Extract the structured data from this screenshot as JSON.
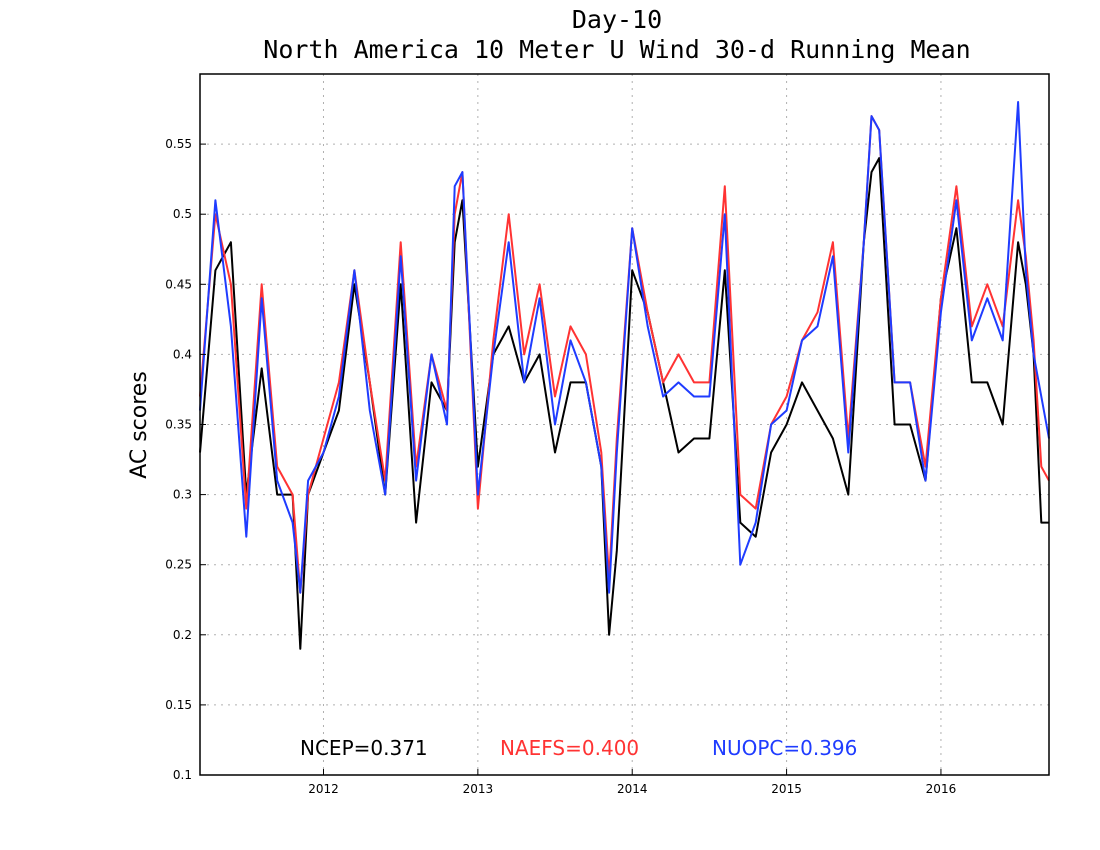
{
  "chart_data": {
    "type": "line",
    "title": "Day-10",
    "subtitle": "North America 10 Meter U Wind 30-d Running Mean",
    "xlabel": "",
    "ylabel": "AC scores",
    "xlim": [
      2011.2,
      2016.7
    ],
    "ylim": [
      0.1,
      0.6
    ],
    "yticks": [
      0.1,
      0.15,
      0.2,
      0.25,
      0.3,
      0.35,
      0.4,
      0.45,
      0.5,
      0.55
    ],
    "ytick_labels": [
      "0.1",
      "0.15",
      "0.2",
      "0.25",
      "0.3",
      "0.35",
      "0.4",
      "0.45",
      "0.5",
      "0.55"
    ],
    "xticks": [
      2012,
      2013,
      2014,
      2015,
      2016
    ],
    "xtick_labels": [
      "2012",
      "2013",
      "2014",
      "2015",
      "2016"
    ],
    "grid": true,
    "legend_position": "bottom inside plot",
    "x": [
      2011.2,
      2011.3,
      2011.4,
      2011.5,
      2011.6,
      2011.7,
      2011.8,
      2011.85,
      2011.9,
      2012.0,
      2012.1,
      2012.2,
      2012.3,
      2012.4,
      2012.5,
      2012.6,
      2012.7,
      2012.8,
      2012.85,
      2012.9,
      2013.0,
      2013.1,
      2013.2,
      2013.3,
      2013.4,
      2013.5,
      2013.6,
      2013.7,
      2013.8,
      2013.85,
      2013.9,
      2014.0,
      2014.1,
      2014.2,
      2014.3,
      2014.4,
      2014.5,
      2014.6,
      2014.7,
      2014.8,
      2014.9,
      2015.0,
      2015.1,
      2015.2,
      2015.3,
      2015.4,
      2015.5,
      2015.55,
      2015.6,
      2015.7,
      2015.8,
      2015.9,
      2016.0,
      2016.1,
      2016.2,
      2016.3,
      2016.4,
      2016.5,
      2016.55,
      2016.6,
      2016.65,
      2016.7
    ],
    "series": [
      {
        "name": "NCEP",
        "color": "#000000",
        "values": [
          0.33,
          0.46,
          0.48,
          0.3,
          0.39,
          0.3,
          0.3,
          0.19,
          0.3,
          0.33,
          0.36,
          0.45,
          0.38,
          0.3,
          0.45,
          0.28,
          0.38,
          0.36,
          0.48,
          0.51,
          0.32,
          0.4,
          0.42,
          0.38,
          0.4,
          0.33,
          0.38,
          0.38,
          0.32,
          0.2,
          0.26,
          0.46,
          0.43,
          0.38,
          0.33,
          0.34,
          0.34,
          0.46,
          0.28,
          0.27,
          0.33,
          0.35,
          0.38,
          0.36,
          0.34,
          0.3,
          0.48,
          0.53,
          0.54,
          0.35,
          0.35,
          0.31,
          0.44,
          0.49,
          0.38,
          0.38,
          0.35,
          0.48,
          0.45,
          0.4,
          0.28,
          0.28
        ]
      },
      {
        "name": "NAEFS",
        "color": "#ff3333",
        "values": [
          0.37,
          0.5,
          0.45,
          0.29,
          0.45,
          0.32,
          0.3,
          0.23,
          0.3,
          0.34,
          0.38,
          0.46,
          0.38,
          0.31,
          0.48,
          0.32,
          0.4,
          0.36,
          0.5,
          0.53,
          0.29,
          0.41,
          0.5,
          0.4,
          0.45,
          0.37,
          0.42,
          0.4,
          0.33,
          0.24,
          0.34,
          0.49,
          0.43,
          0.38,
          0.4,
          0.38,
          0.38,
          0.52,
          0.3,
          0.29,
          0.35,
          0.37,
          0.41,
          0.43,
          0.48,
          0.34,
          0.48,
          0.57,
          0.56,
          0.38,
          0.38,
          0.32,
          0.44,
          0.52,
          0.42,
          0.45,
          0.42,
          0.51,
          0.47,
          0.41,
          0.32,
          0.31
        ]
      },
      {
        "name": "NUOPC",
        "color": "#1f3cff",
        "values": [
          0.36,
          0.51,
          0.42,
          0.27,
          0.44,
          0.31,
          0.28,
          0.23,
          0.31,
          0.33,
          0.37,
          0.46,
          0.36,
          0.3,
          0.47,
          0.31,
          0.4,
          0.35,
          0.52,
          0.53,
          0.3,
          0.4,
          0.48,
          0.38,
          0.44,
          0.35,
          0.41,
          0.38,
          0.32,
          0.23,
          0.33,
          0.49,
          0.42,
          0.37,
          0.38,
          0.37,
          0.37,
          0.5,
          0.25,
          0.28,
          0.35,
          0.36,
          0.41,
          0.42,
          0.47,
          0.33,
          0.48,
          0.57,
          0.56,
          0.38,
          0.38,
          0.31,
          0.43,
          0.51,
          0.41,
          0.44,
          0.41,
          0.58,
          0.46,
          0.4,
          0.37,
          0.34
        ]
      }
    ],
    "legend_entries": [
      {
        "label": "NCEP=0.371",
        "color": "#000000"
      },
      {
        "label": "NAEFS=0.400",
        "color": "#ff3333"
      },
      {
        "label": "NUOPC=0.396",
        "color": "#1f3cff"
      }
    ]
  }
}
